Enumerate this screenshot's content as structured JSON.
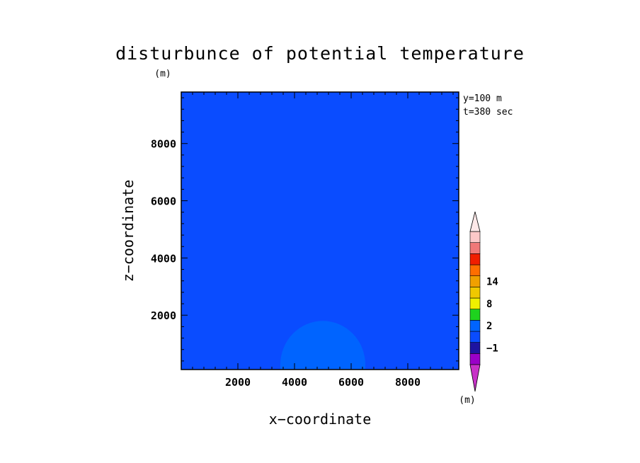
{
  "chart_data": {
    "type": "heatmap",
    "title": "disturbunce of potential temperature",
    "xlabel": "x−coordinate",
    "ylabel": "z−coordinate",
    "y_unit": "(m)",
    "annotations": [
      "y=100 m",
      "t=380 sec"
    ],
    "xlim": [
      0,
      9800
    ],
    "ylim": [
      100,
      9800
    ],
    "x_ticks": [
      2000,
      4000,
      6000,
      8000
    ],
    "y_ticks": [
      2000,
      4000,
      6000,
      8000
    ],
    "x_tick_labels": [
      "2000",
      "4000",
      "6000",
      "8000"
    ],
    "y_tick_labels": [
      "2000",
      "4000",
      "6000",
      "8000"
    ],
    "background_level": {
      "range": [
        -1,
        0
      ],
      "color": "#0a4cff"
    },
    "bubble": {
      "range": [
        0,
        1
      ],
      "color": "#0064ff",
      "center_x": 5000,
      "half_width": 1500,
      "bottom_z": 100,
      "top_z": 1800
    },
    "colorbar": {
      "unit": "(m)",
      "levels": [
        {
          "color": "#9a00c8"
        },
        {
          "color": "#1e14a0"
        },
        {
          "color": "#0a4cff"
        },
        {
          "color": "#0064ff"
        },
        {
          "color": "#1ed21e"
        },
        {
          "color": "#f0f000"
        },
        {
          "color": "#f0c800"
        },
        {
          "color": "#f0a000"
        },
        {
          "color": "#ff6e00"
        },
        {
          "color": "#f01e00"
        },
        {
          "color": "#f07878"
        },
        {
          "color": "#fcc8c8"
        }
      ],
      "labels": [
        "−1",
        "2",
        "8",
        "14"
      ]
    }
  }
}
